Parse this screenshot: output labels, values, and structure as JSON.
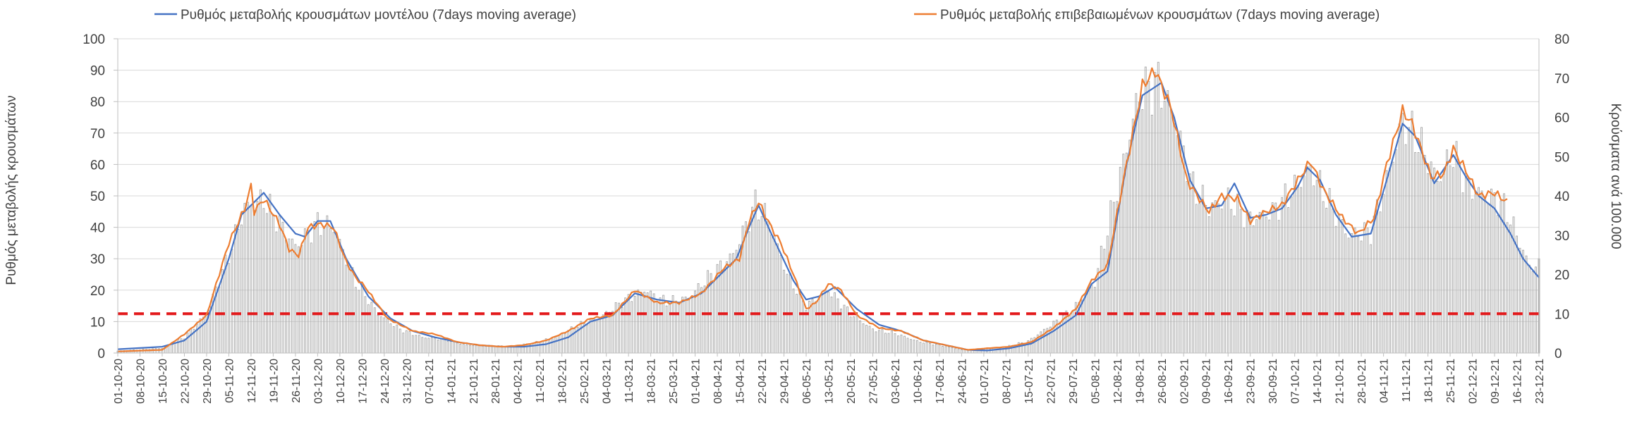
{
  "chart_data": {
    "type": "line",
    "title": "",
    "ylabel": "Ρυθμός μεταβολής κρουσμάτων",
    "y2label": "Κρούσματα ανά 100.000",
    "ylim": [
      0,
      100
    ],
    "y2lim": [
      0,
      80
    ],
    "yticks": [
      0,
      10,
      20,
      30,
      40,
      50,
      60,
      70,
      80,
      90,
      100
    ],
    "y2ticks": [
      0,
      10,
      20,
      30,
      40,
      50,
      60,
      70,
      80
    ],
    "grid": true,
    "legend_position": "top",
    "x_start": "01-10-20",
    "x_end": "23-12-21",
    "x_tick_labels": [
      "01-10-20",
      "08-10-20",
      "15-10-20",
      "22-10-20",
      "29-10-20",
      "05-11-20",
      "12-11-20",
      "19-11-20",
      "26-11-20",
      "03-12-20",
      "10-12-20",
      "17-12-20",
      "24-12-20",
      "31-12-20",
      "07-01-21",
      "14-01-21",
      "21-01-21",
      "28-01-21",
      "04-02-21",
      "11-02-21",
      "18-02-21",
      "25-02-21",
      "04-03-21",
      "11-03-21",
      "18-03-21",
      "25-03-21",
      "01-04-21",
      "08-04-21",
      "15-04-21",
      "22-04-21",
      "29-04-21",
      "06-05-21",
      "13-05-21",
      "20-05-21",
      "27-05-21",
      "03-06-21",
      "10-06-21",
      "17-06-21",
      "24-06-21",
      "01-07-21",
      "08-07-21",
      "15-07-21",
      "22-07-21",
      "29-07-21",
      "05-08-21",
      "12-08-21",
      "19-08-21",
      "26-08-21",
      "02-09-21",
      "09-09-21",
      "16-09-21",
      "23-09-21",
      "30-09-21",
      "07-10-21",
      "14-10-21",
      "21-10-21",
      "28-10-21",
      "04-11-21",
      "11-11-21",
      "18-11-21",
      "25-11-21",
      "02-12-21",
      "09-12-21",
      "16-12-21",
      "23-12-21"
    ],
    "threshold": {
      "value": 12.5,
      "axis": "left",
      "color": "#e31a1c"
    },
    "series": [
      {
        "name": "Ρυθμός μεταβολής κρουσμάτων μοντέλου (7days moving average)",
        "axis": "left",
        "color": "#4472c4",
        "points": [
          [
            "01-10-20",
            1.2
          ],
          [
            "15-10-20",
            2
          ],
          [
            "22-10-20",
            4
          ],
          [
            "29-10-20",
            10
          ],
          [
            "05-11-20",
            30
          ],
          [
            "09-11-20",
            44
          ],
          [
            "16-11-20",
            51
          ],
          [
            "21-11-20",
            44
          ],
          [
            "26-11-20",
            38
          ],
          [
            "29-11-20",
            37
          ],
          [
            "03-12-20",
            42
          ],
          [
            "07-12-20",
            42
          ],
          [
            "12-12-20",
            30
          ],
          [
            "19-12-20",
            18
          ],
          [
            "26-12-20",
            11
          ],
          [
            "02-01-21",
            7
          ],
          [
            "09-01-21",
            5
          ],
          [
            "16-01-21",
            3.5
          ],
          [
            "23-01-21",
            2.5
          ],
          [
            "30-01-21",
            2
          ],
          [
            "06-02-21",
            2
          ],
          [
            "13-02-21",
            2.8
          ],
          [
            "20-02-21",
            5
          ],
          [
            "27-02-21",
            10
          ],
          [
            "06-03-21",
            12
          ],
          [
            "13-03-21",
            19
          ],
          [
            "20-03-21",
            17
          ],
          [
            "27-03-21",
            16
          ],
          [
            "03-04-21",
            19
          ],
          [
            "10-04-21",
            26
          ],
          [
            "14-04-21",
            30
          ],
          [
            "18-04-21",
            40
          ],
          [
            "21-04-21",
            47
          ],
          [
            "25-04-21",
            38
          ],
          [
            "02-05-21",
            23
          ],
          [
            "06-05-21",
            17
          ],
          [
            "10-05-21",
            18
          ],
          [
            "15-05-21",
            21
          ],
          [
            "22-05-21",
            14
          ],
          [
            "29-05-21",
            9
          ],
          [
            "05-06-21",
            7
          ],
          [
            "12-06-21",
            4
          ],
          [
            "19-06-21",
            2.5
          ],
          [
            "26-06-21",
            1
          ],
          [
            "02-07-21",
            0.8
          ],
          [
            "09-07-21",
            1.5
          ],
          [
            "16-07-21",
            3
          ],
          [
            "23-07-21",
            7
          ],
          [
            "30-07-21",
            12
          ],
          [
            "04-08-21",
            22
          ],
          [
            "09-08-21",
            26
          ],
          [
            "15-08-21",
            60
          ],
          [
            "20-08-21",
            82
          ],
          [
            "26-08-21",
            86
          ],
          [
            "30-08-21",
            75
          ],
          [
            "04-09-21",
            55
          ],
          [
            "09-09-21",
            46
          ],
          [
            "14-09-21",
            47
          ],
          [
            "18-09-21",
            54
          ],
          [
            "23-09-21",
            43
          ],
          [
            "28-09-21",
            44
          ],
          [
            "03-10-21",
            46
          ],
          [
            "08-10-21",
            53
          ],
          [
            "11-10-21",
            59
          ],
          [
            "15-10-21",
            55
          ],
          [
            "20-10-21",
            44
          ],
          [
            "25-10-21",
            37
          ],
          [
            "31-10-21",
            38
          ],
          [
            "05-11-21",
            55
          ],
          [
            "10-11-21",
            73
          ],
          [
            "14-11-21",
            69
          ],
          [
            "20-11-21",
            54
          ],
          [
            "26-11-21",
            63
          ],
          [
            "30-11-21",
            56
          ],
          [
            "04-12-21",
            50
          ],
          [
            "09-12-21",
            46
          ],
          [
            "14-12-21",
            38
          ],
          [
            "18-12-21",
            30
          ],
          [
            "23-12-21",
            24
          ]
        ]
      },
      {
        "name": "Ρυθμός μεταβολής επιβεβαιωμένων κρουσμάτων (7days moving average)",
        "axis": "left",
        "color": "#ed7d31",
        "points": [
          [
            "01-10-20",
            0.5
          ],
          [
            "15-10-20",
            1
          ],
          [
            "22-10-20",
            6
          ],
          [
            "29-10-20",
            12
          ],
          [
            "05-11-20",
            35
          ],
          [
            "10-11-20",
            46
          ],
          [
            "12-11-20",
            53
          ],
          [
            "13-11-20",
            45
          ],
          [
            "16-11-20",
            49
          ],
          [
            "21-11-20",
            41
          ],
          [
            "24-11-20",
            33
          ],
          [
            "27-11-20",
            31
          ],
          [
            "30-11-20",
            40
          ],
          [
            "04-12-20",
            41
          ],
          [
            "08-12-20",
            40
          ],
          [
            "12-12-20",
            29
          ],
          [
            "15-12-20",
            24
          ],
          [
            "18-12-20",
            21
          ],
          [
            "25-12-20",
            11
          ],
          [
            "02-01-21",
            7
          ],
          [
            "09-01-21",
            6
          ],
          [
            "16-01-21",
            3.5
          ],
          [
            "23-01-21",
            2.5
          ],
          [
            "30-01-21",
            2
          ],
          [
            "06-02-21",
            2.5
          ],
          [
            "13-02-21",
            4
          ],
          [
            "20-02-21",
            7
          ],
          [
            "27-02-21",
            11
          ],
          [
            "06-03-21",
            12
          ],
          [
            "13-03-21",
            20
          ],
          [
            "20-03-21",
            16
          ],
          [
            "27-03-21",
            16
          ],
          [
            "03-04-21",
            19
          ],
          [
            "10-04-21",
            27
          ],
          [
            "15-04-21",
            30
          ],
          [
            "18-04-21",
            42
          ],
          [
            "21-04-21",
            48
          ],
          [
            "25-04-21",
            40
          ],
          [
            "28-04-21",
            35
          ],
          [
            "02-05-21",
            25
          ],
          [
            "06-05-21",
            14
          ],
          [
            "09-05-21",
            16
          ],
          [
            "13-05-21",
            22
          ],
          [
            "17-05-21",
            20
          ],
          [
            "22-05-21",
            12
          ],
          [
            "29-05-21",
            8
          ],
          [
            "05-06-21",
            7
          ],
          [
            "12-06-21",
            4
          ],
          [
            "19-06-21",
            2.5
          ],
          [
            "26-06-21",
            1
          ],
          [
            "02-07-21",
            1.5
          ],
          [
            "09-07-21",
            2
          ],
          [
            "16-07-21",
            3.5
          ],
          [
            "23-07-21",
            8
          ],
          [
            "30-07-21",
            14
          ],
          [
            "04-08-21",
            23
          ],
          [
            "09-08-21",
            28
          ],
          [
            "14-08-21",
            55
          ],
          [
            "20-08-21",
            85
          ],
          [
            "24-08-21",
            90
          ],
          [
            "29-08-21",
            78
          ],
          [
            "03-09-21",
            55
          ],
          [
            "07-09-21",
            49
          ],
          [
            "10-09-21",
            45
          ],
          [
            "14-09-21",
            50
          ],
          [
            "19-09-21",
            49
          ],
          [
            "23-09-21",
            42
          ],
          [
            "28-09-21",
            45
          ],
          [
            "03-10-21",
            47
          ],
          [
            "08-10-21",
            55
          ],
          [
            "12-10-21",
            61
          ],
          [
            "16-10-21",
            52
          ],
          [
            "22-10-21",
            43
          ],
          [
            "27-10-21",
            38
          ],
          [
            "01-11-21",
            43
          ],
          [
            "05-11-21",
            60
          ],
          [
            "10-11-21",
            77
          ],
          [
            "13-11-21",
            73
          ],
          [
            "19-11-21",
            56
          ],
          [
            "23-11-21",
            57
          ],
          [
            "26-11-21",
            65
          ],
          [
            "30-11-21",
            58
          ],
          [
            "04-12-21",
            50
          ],
          [
            "09-12-21",
            51
          ],
          [
            "13-12-21",
            48
          ]
        ]
      },
      {
        "name": "Κρούσματα ανά 100.000",
        "type": "bar",
        "axis": "right",
        "color": "#a6a6a6",
        "points": [
          [
            "01-10-20",
            0.5
          ],
          [
            "15-10-20",
            1.2
          ],
          [
            "22-10-20",
            4
          ],
          [
            "29-10-20",
            10
          ],
          [
            "05-11-20",
            25
          ],
          [
            "10-11-20",
            37
          ],
          [
            "16-11-20",
            39
          ],
          [
            "21-11-20",
            33
          ],
          [
            "26-11-20",
            27
          ],
          [
            "03-12-20",
            33
          ],
          [
            "08-12-20",
            32
          ],
          [
            "15-12-20",
            18
          ],
          [
            "22-12-20",
            10
          ],
          [
            "29-12-20",
            6
          ],
          [
            "05-01-21",
            4
          ],
          [
            "12-01-21",
            3.5
          ],
          [
            "19-01-21",
            2
          ],
          [
            "26-01-21",
            1.8
          ],
          [
            "02-02-21",
            1.7
          ],
          [
            "09-02-21",
            2.5
          ],
          [
            "16-02-21",
            4
          ],
          [
            "23-02-21",
            7
          ],
          [
            "02-03-21",
            9
          ],
          [
            "09-03-21",
            13
          ],
          [
            "16-03-21",
            16
          ],
          [
            "23-03-21",
            13
          ],
          [
            "30-03-21",
            14
          ],
          [
            "06-04-21",
            20
          ],
          [
            "13-04-21",
            25
          ],
          [
            "20-04-21",
            38
          ],
          [
            "24-04-21",
            34
          ],
          [
            "30-04-21",
            20
          ],
          [
            "06-05-21",
            12
          ],
          [
            "13-05-21",
            16
          ],
          [
            "20-05-21",
            10
          ],
          [
            "27-05-21",
            6
          ],
          [
            "03-06-21",
            5
          ],
          [
            "10-06-21",
            3
          ],
          [
            "17-06-21",
            2
          ],
          [
            "24-06-21",
            0.8
          ],
          [
            "01-07-21",
            1
          ],
          [
            "08-07-21",
            1.6
          ],
          [
            "15-07-21",
            3
          ],
          [
            "22-07-21",
            7
          ],
          [
            "29-07-21",
            11
          ],
          [
            "05-08-21",
            18
          ],
          [
            "12-08-21",
            42
          ],
          [
            "19-08-21",
            66
          ],
          [
            "25-08-21",
            69
          ],
          [
            "30-08-21",
            60
          ],
          [
            "05-09-21",
            42
          ],
          [
            "10-09-21",
            37
          ],
          [
            "16-09-21",
            39
          ],
          [
            "23-09-21",
            34
          ],
          [
            "30-09-21",
            36
          ],
          [
            "07-10-21",
            42
          ],
          [
            "12-10-21",
            47
          ],
          [
            "18-10-21",
            38
          ],
          [
            "24-10-21",
            30
          ],
          [
            "31-10-21",
            31
          ],
          [
            "05-11-21",
            44
          ],
          [
            "10-11-21",
            59
          ],
          [
            "15-11-21",
            54
          ],
          [
            "21-11-21",
            44
          ],
          [
            "26-11-21",
            51
          ],
          [
            "01-12-21",
            42
          ],
          [
            "06-12-21",
            40
          ],
          [
            "10-12-21",
            39
          ],
          [
            "13-12-21",
            36
          ],
          [
            "16-12-21",
            30
          ],
          [
            "20-12-21",
            22
          ],
          [
            "23-12-21",
            22
          ]
        ]
      }
    ]
  }
}
